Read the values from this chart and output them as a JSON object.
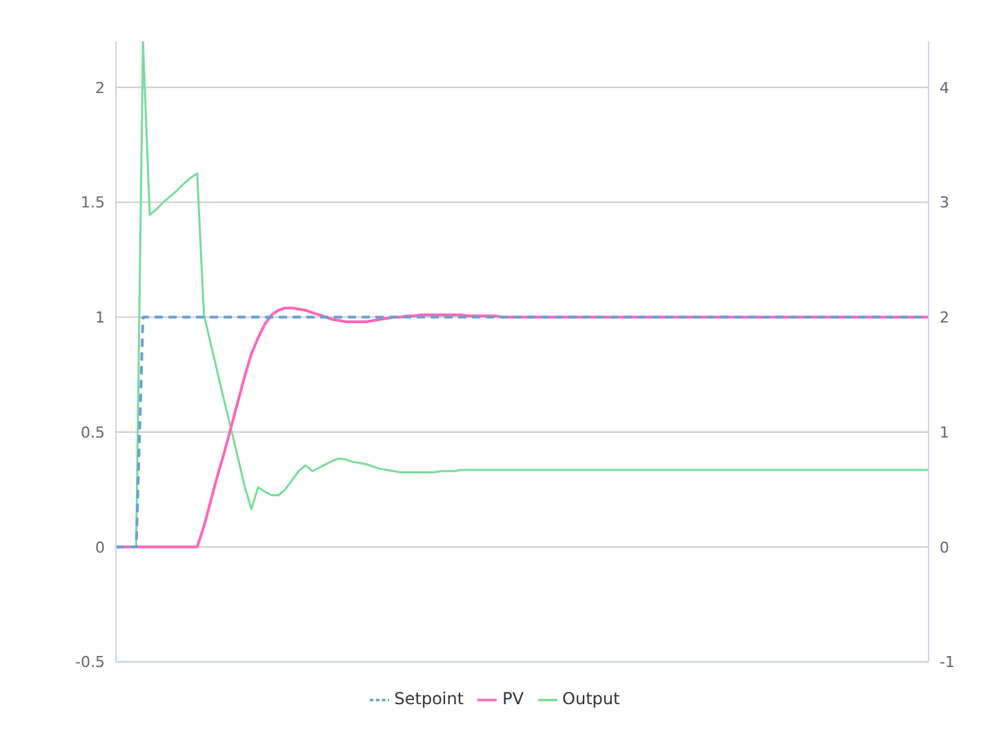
{
  "chart_data": {
    "type": "line",
    "legend": "bottom",
    "grid": "y",
    "categories": [
      null,
      null,
      null,
      null,
      null,
      null,
      null,
      null,
      null,
      null,
      null,
      null,
      null,
      null,
      null,
      null,
      null,
      null,
      null,
      null,
      null,
      null,
      null,
      null,
      null,
      null,
      null,
      null,
      null,
      null,
      null,
      null,
      null,
      null,
      null,
      null,
      null,
      null,
      null,
      null,
      null,
      null,
      null,
      null,
      null,
      null,
      null,
      null,
      null,
      null,
      null,
      null,
      null,
      null,
      null,
      null,
      null,
      null,
      null,
      null,
      null,
      null,
      null,
      null,
      null,
      null,
      null,
      null,
      null,
      null,
      null,
      null,
      null,
      null,
      null,
      null,
      null,
      null,
      null,
      null,
      null,
      null,
      null,
      null,
      null,
      null,
      null,
      null,
      null,
      null,
      null,
      null,
      null,
      null,
      null,
      null,
      null,
      null,
      null,
      null,
      null,
      null,
      null,
      null,
      null,
      null,
      null,
      null,
      null,
      null,
      null,
      null,
      null,
      null,
      null,
      null,
      null,
      null,
      null,
      null,
      null
    ],
    "ylim": [
      -0.5,
      2.2
    ],
    "yticks": [
      -0.5,
      0,
      0.5,
      1,
      1.5,
      2
    ],
    "y2lim": [
      -1,
      4.4
    ],
    "y2ticks": [
      -1,
      0,
      1,
      2,
      3,
      4
    ],
    "series": [
      {
        "name": "Setpoint",
        "color": "#6a9fd4",
        "line_style": "dashed",
        "values": [
          0,
          0,
          0,
          0,
          1,
          1,
          1,
          1,
          1,
          1,
          1,
          1,
          1,
          1,
          1,
          1,
          1,
          1,
          1,
          1,
          1,
          1,
          1,
          1,
          1,
          1,
          1,
          1,
          1,
          1,
          1,
          1,
          1,
          1,
          1,
          1,
          1,
          1,
          1,
          1,
          1,
          1,
          1,
          1,
          1,
          1,
          1,
          1,
          1,
          1,
          1,
          1,
          1,
          1,
          1,
          1,
          1,
          1,
          1,
          1,
          1,
          1,
          1,
          1,
          1,
          1,
          1,
          1,
          1,
          1,
          1,
          1,
          1,
          1,
          1,
          1,
          1,
          1,
          1,
          1,
          1,
          1,
          1,
          1,
          1,
          1,
          1,
          1,
          1,
          1,
          1,
          1,
          1,
          1,
          1,
          1,
          1,
          1,
          1,
          1,
          1,
          1,
          1,
          1,
          1,
          1,
          1,
          1,
          1,
          1,
          1,
          1,
          1,
          1,
          1,
          1,
          1,
          1,
          1,
          1,
          1
        ]
      },
      {
        "name": "PV",
        "color": "#ff66b8",
        "line_style": "solid",
        "values": [
          0,
          0,
          0,
          0,
          0,
          0,
          0,
          0,
          0,
          0,
          0,
          0,
          0,
          0.09,
          0.2,
          0.31,
          0.41,
          0.52,
          0.63,
          0.74,
          0.84,
          0.91,
          0.97,
          1.01,
          1.03,
          1.04,
          1.04,
          1.035,
          1.03,
          1.02,
          1.01,
          1.0,
          0.99,
          0.985,
          0.98,
          0.98,
          0.98,
          0.98,
          0.985,
          0.99,
          0.995,
          1.0,
          1.0,
          1.005,
          1.005,
          1.01,
          1.01,
          1.01,
          1.01,
          1.01,
          1.01,
          1.01,
          1.005,
          1.005,
          1.005,
          1.005,
          1.005,
          1,
          1,
          1,
          1,
          1,
          1,
          1,
          1,
          1,
          1,
          1,
          1,
          1,
          1,
          1,
          1,
          1,
          1,
          1,
          1,
          1,
          1,
          1,
          1,
          1,
          1,
          1,
          1,
          1,
          1,
          1,
          1,
          1,
          1,
          1,
          1,
          1,
          1,
          1,
          1,
          1,
          1,
          1,
          1,
          1,
          1,
          1,
          1,
          1,
          1,
          1,
          1,
          1,
          1,
          1,
          1,
          1,
          1,
          1,
          1,
          1,
          1,
          1,
          1
        ]
      },
      {
        "name": "Output",
        "color": "#77dd99",
        "line_style": "solid",
        "axis": "y2",
        "values": [
          0,
          0,
          0,
          0,
          4.4,
          2.89,
          2.94,
          3.0,
          3.05,
          3.1,
          3.16,
          3.21,
          3.25,
          2.02,
          1.77,
          1.52,
          1.27,
          1.03,
          0.78,
          0.53,
          0.33,
          0.52,
          0.48,
          0.45,
          0.45,
          0.5,
          0.58,
          0.66,
          0.71,
          0.66,
          0.69,
          0.72,
          0.75,
          0.77,
          0.76,
          0.74,
          0.73,
          0.72,
          0.7,
          0.68,
          0.67,
          0.66,
          0.65,
          0.65,
          0.65,
          0.65,
          0.65,
          0.65,
          0.66,
          0.66,
          0.66,
          0.67,
          0.67,
          0.67,
          0.67,
          0.67,
          0.67,
          0.67,
          0.67,
          0.67,
          0.67,
          0.67,
          0.67,
          0.67,
          0.67,
          0.67,
          0.67,
          0.67,
          0.67,
          0.67,
          0.67,
          0.67,
          0.67,
          0.67,
          0.67,
          0.67,
          0.67,
          0.67,
          0.67,
          0.67,
          0.67,
          0.67,
          0.67,
          0.67,
          0.67,
          0.67,
          0.67,
          0.67,
          0.67,
          0.67,
          0.67,
          0.67,
          0.67,
          0.67,
          0.67,
          0.67,
          0.67,
          0.67,
          0.67,
          0.67,
          0.67,
          0.67,
          0.67,
          0.67,
          0.67,
          0.67,
          0.67,
          0.67,
          0.67,
          0.67,
          0.67,
          0.67,
          0.67,
          0.67,
          0.67,
          0.67,
          0.67,
          0.67,
          0.67,
          0.67,
          0.67
        ]
      }
    ]
  }
}
